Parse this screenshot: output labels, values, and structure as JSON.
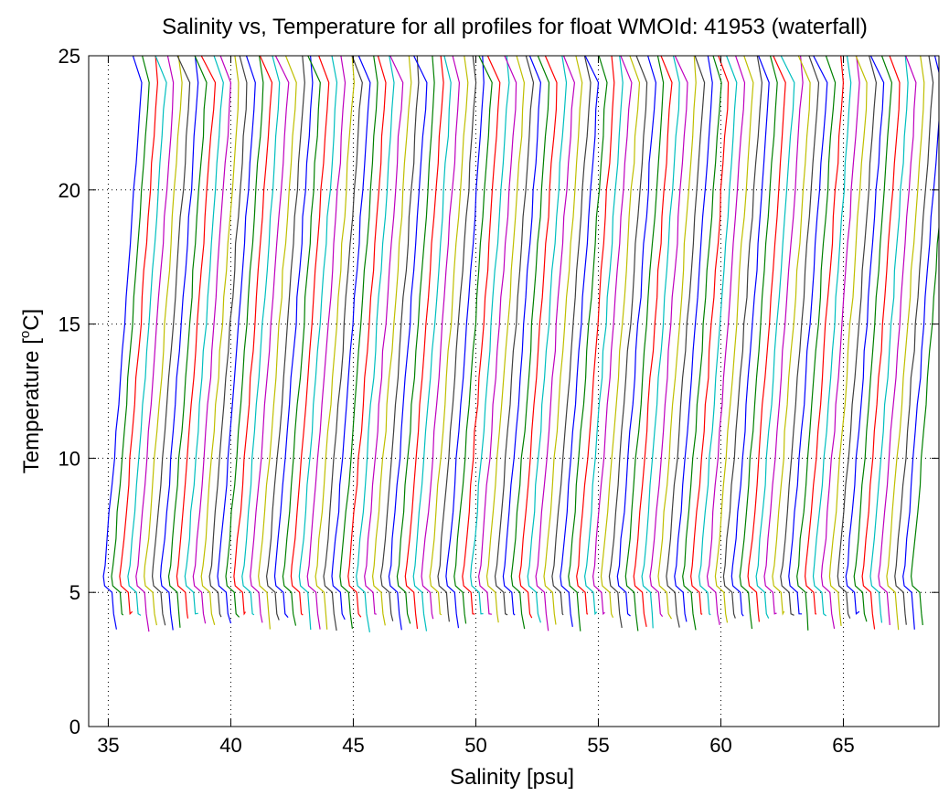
{
  "chart_data": {
    "type": "line",
    "title": "Salinity vs, Temperature for all profiles for float WMOId: 41953 (waterfall)",
    "xlabel": "Salinity [psu]",
    "ylabel_main": "Temperature [",
    "ylabel_sup": "o",
    "ylabel_end": "C]",
    "xlim": [
      34.2,
      68.9
    ],
    "ylim": [
      0,
      25
    ],
    "xticks": [
      35,
      40,
      45,
      50,
      55,
      60,
      65
    ],
    "yticks": [
      0,
      5,
      10,
      15,
      20,
      25
    ],
    "grid": true,
    "grid_style": "dotted",
    "profile_count": 100,
    "offset_per_profile": 0.333,
    "first_profile_salinity_at_5C": 35.1,
    "last_profile_salinity_at_5C": 66.9,
    "surface_temperature": 25,
    "min_temperature": 3.5,
    "series_colors": [
      "#0000ff",
      "#008000",
      "#ff0000",
      "#00bfbf",
      "#bf00bf",
      "#bfbf00",
      "#404040"
    ]
  }
}
